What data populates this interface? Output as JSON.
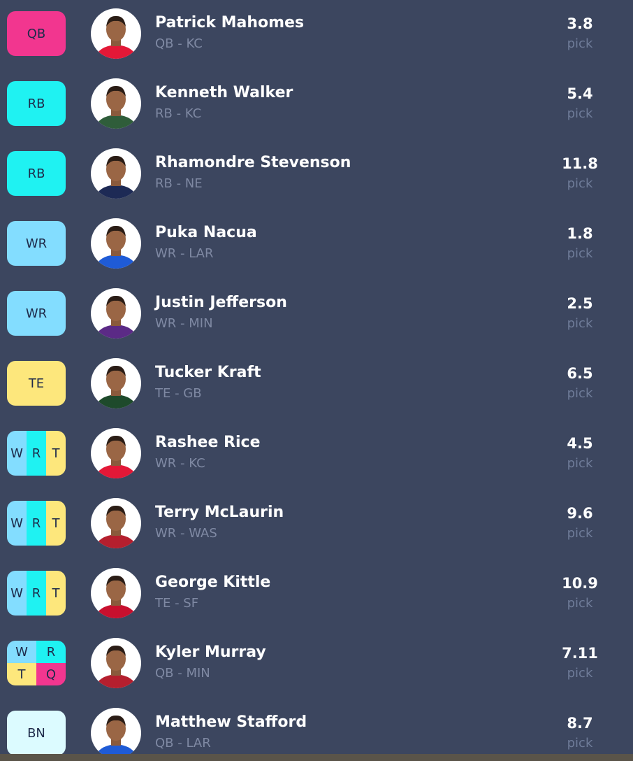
{
  "pick_label": "pick",
  "rows": [
    {
      "slot": [
        {
          "label": "QB",
          "color": "#f2368f"
        }
      ],
      "name": "Patrick Mahomes",
      "detail": "QB - KC",
      "pick": "3.8",
      "avatar_color": "#e31837"
    },
    {
      "slot": [
        {
          "label": "RB",
          "color": "#1ff2f2"
        }
      ],
      "name": "Kenneth Walker",
      "detail": "RB - KC",
      "pick": "5.4",
      "avatar_color": "#2f5d3a"
    },
    {
      "slot": [
        {
          "label": "RB",
          "color": "#1ff2f2"
        }
      ],
      "name": "Rhamondre Stevenson",
      "detail": "RB - NE",
      "pick": "11.8",
      "avatar_color": "#1d2a55"
    },
    {
      "slot": [
        {
          "label": "WR",
          "color": "#83ddff"
        }
      ],
      "name": "Puka Nacua",
      "detail": "WR - LAR",
      "pick": "1.8",
      "avatar_color": "#1f5bd6"
    },
    {
      "slot": [
        {
          "label": "WR",
          "color": "#83ddff"
        }
      ],
      "name": "Justin Jefferson",
      "detail": "WR - MIN",
      "pick": "2.5",
      "avatar_color": "#5b2a86"
    },
    {
      "slot": [
        {
          "label": "TE",
          "color": "#fde77c"
        }
      ],
      "name": "Tucker Kraft",
      "detail": "TE - GB",
      "pick": "6.5",
      "avatar_color": "#1e4a2b"
    },
    {
      "slot": [
        {
          "label": "W",
          "color": "#83ddff"
        },
        {
          "label": "R",
          "color": "#1ff2f2"
        },
        {
          "label": "T",
          "color": "#fde77c"
        }
      ],
      "name": "Rashee Rice",
      "detail": "WR - KC",
      "pick": "4.5",
      "avatar_color": "#e31837"
    },
    {
      "slot": [
        {
          "label": "W",
          "color": "#83ddff"
        },
        {
          "label": "R",
          "color": "#1ff2f2"
        },
        {
          "label": "T",
          "color": "#fde77c"
        }
      ],
      "name": "Terry McLaurin",
      "detail": "WR - WAS",
      "pick": "9.6",
      "avatar_color": "#b51f2e"
    },
    {
      "slot": [
        {
          "label": "W",
          "color": "#83ddff"
        },
        {
          "label": "R",
          "color": "#1ff2f2"
        },
        {
          "label": "T",
          "color": "#fde77c"
        }
      ],
      "name": "George Kittle",
      "detail": "TE - SF",
      "pick": "10.9",
      "avatar_color": "#c8102e"
    },
    {
      "slot": [
        {
          "label": "W",
          "color": "#83ddff"
        },
        {
          "label": "R",
          "color": "#1ff2f2"
        },
        {
          "label": "T",
          "color": "#fde77c"
        },
        {
          "label": "Q",
          "color": "#f2368f"
        }
      ],
      "name": "Kyler Murray",
      "detail": "QB - MIN",
      "pick": "7.11",
      "avatar_color": "#b51f2e"
    },
    {
      "slot": [
        {
          "label": "BN",
          "color": "#dcfbff"
        }
      ],
      "name": "Matthew Stafford",
      "detail": "QB - LAR",
      "pick": "8.7",
      "avatar_color": "#1f5bd6"
    }
  ]
}
